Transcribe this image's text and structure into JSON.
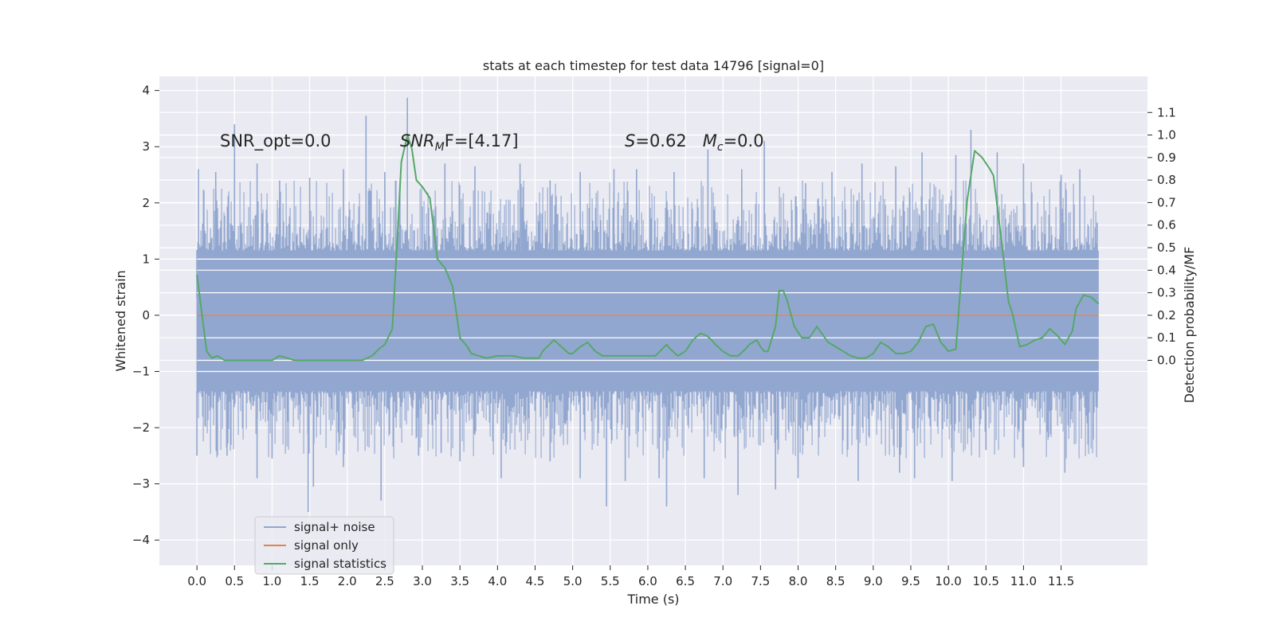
{
  "chart_data": {
    "type": "line",
    "title": "stats at each timestep for test data 14796 [signal=0]",
    "xlabel": "Time (s)",
    "ylabel": "Whitened strain",
    "ylabel_right": "Detection probability/MF",
    "xlim": [
      -0.5,
      12.65
    ],
    "ylim": [
      -4.45,
      4.25
    ],
    "ylim_right": [
      -0.91,
      1.26
    ],
    "x_ticks": [
      "0.0",
      "0.5",
      "1.0",
      "1.5",
      "2.0",
      "2.5",
      "3.0",
      "3.5",
      "4.0",
      "4.5",
      "5.0",
      "5.5",
      "6.0",
      "6.5",
      "7.0",
      "7.5",
      "8.0",
      "8.5",
      "9.0",
      "9.5",
      "10.0",
      "10.5",
      "11.0",
      "11.5"
    ],
    "y_ticks_left": [
      "4",
      "3",
      "2",
      "1",
      "0",
      "−1",
      "−2",
      "−3",
      "−4"
    ],
    "y_ticks_right": [
      "1.1",
      "1.0",
      "0.9",
      "0.8",
      "0.7",
      "0.6",
      "0.5",
      "0.4",
      "0.3",
      "0.2",
      "0.1",
      "0.0"
    ],
    "grid": true,
    "legend_position": "lower-left",
    "annotations": [
      {
        "id": "snr_opt",
        "text": "SNR_opt=0.0"
      },
      {
        "id": "snr_mf",
        "text": "SNR",
        "sub": "M",
        "rest": "F=[4.17]"
      },
      {
        "id": "s_mc",
        "text": "S",
        "rest": "=0.62   ",
        "text2": "M",
        "sub2": "c",
        "rest2": "=0.0"
      }
    ],
    "series": [
      {
        "name": "signal+ noise",
        "axis": "left",
        "color": "#92a7cf",
        "t_start": 0.0,
        "t_end": 12.0,
        "band": [
          -1.35,
          1.15
        ],
        "peaks_pos": [
          [
            0.0,
            0.3
          ],
          [
            0.02,
            2.6
          ],
          [
            0.25,
            2.55
          ],
          [
            0.5,
            3.4
          ],
          [
            0.8,
            2.7
          ],
          [
            1.1,
            2.4
          ],
          [
            1.5,
            2.45
          ],
          [
            1.95,
            2.6
          ],
          [
            2.25,
            3.55
          ],
          [
            2.5,
            2.55
          ],
          [
            2.8,
            3.87
          ],
          [
            3.3,
            2.7
          ],
          [
            3.7,
            2.65
          ],
          [
            4.3,
            2.7
          ],
          [
            4.7,
            2.4
          ],
          [
            5.1,
            2.55
          ],
          [
            5.55,
            2.6
          ],
          [
            5.85,
            2.6
          ],
          [
            6.35,
            2.55
          ],
          [
            6.8,
            2.95
          ],
          [
            7.25,
            2.6
          ],
          [
            7.55,
            3.1
          ],
          [
            8.1,
            2.35
          ],
          [
            8.45,
            2.55
          ],
          [
            8.85,
            2.7
          ],
          [
            9.3,
            2.65
          ],
          [
            9.65,
            2.9
          ],
          [
            10.1,
            2.85
          ],
          [
            10.3,
            3.3
          ],
          [
            10.65,
            2.9
          ],
          [
            11.0,
            2.7
          ],
          [
            11.5,
            2.5
          ],
          [
            11.75,
            2.6
          ],
          [
            11.98,
            1.65
          ]
        ],
        "peaks_neg": [
          [
            0.0,
            -2.5
          ],
          [
            0.4,
            -2.5
          ],
          [
            0.8,
            -2.9
          ],
          [
            1.0,
            -2.55
          ],
          [
            1.48,
            -3.5
          ],
          [
            1.55,
            -3.05
          ],
          [
            1.95,
            -2.7
          ],
          [
            2.45,
            -3.3
          ],
          [
            2.95,
            -2.5
          ],
          [
            3.25,
            -2.45
          ],
          [
            3.5,
            -2.6
          ],
          [
            4.05,
            -2.9
          ],
          [
            4.7,
            -2.6
          ],
          [
            5.1,
            -2.9
          ],
          [
            5.45,
            -3.4
          ],
          [
            5.7,
            -2.95
          ],
          [
            6.15,
            -2.9
          ],
          [
            6.25,
            -3.4
          ],
          [
            6.75,
            -2.9
          ],
          [
            7.2,
            -3.2
          ],
          [
            7.7,
            -3.1
          ],
          [
            8.0,
            -2.9
          ],
          [
            8.8,
            -2.95
          ],
          [
            9.35,
            -2.8
          ],
          [
            9.55,
            -2.9
          ],
          [
            10.05,
            -2.95
          ],
          [
            10.5,
            -2.4
          ],
          [
            11.0,
            -2.7
          ],
          [
            11.55,
            -2.8
          ],
          [
            11.98,
            -1.65
          ]
        ]
      },
      {
        "name": "signal only",
        "axis": "left",
        "color": "#dd8452",
        "x": [
          0.0,
          12.0
        ],
        "y": [
          0.0,
          0.0
        ]
      },
      {
        "name": "signal statistics",
        "axis": "right",
        "color": "#55a868",
        "x": [
          0.0,
          0.13,
          0.2,
          0.27,
          0.37,
          0.47,
          0.6,
          0.8,
          1.0,
          1.1,
          1.3,
          1.5,
          1.7,
          1.85,
          2.0,
          2.2,
          2.33,
          2.42,
          2.5,
          2.6,
          2.66,
          2.72,
          2.8,
          2.86,
          2.92,
          3.0,
          3.1,
          3.2,
          3.3,
          3.4,
          3.5,
          3.6,
          3.65,
          3.75,
          3.85,
          4.0,
          4.1,
          4.2,
          4.35,
          4.55,
          4.6,
          4.75,
          4.85,
          4.95,
          5.0,
          5.1,
          5.2,
          5.3,
          5.4,
          5.5,
          5.6,
          5.7,
          5.8,
          5.9,
          6.0,
          6.1,
          6.25,
          6.3,
          6.4,
          6.5,
          6.6,
          6.7,
          6.78,
          6.85,
          6.9,
          7.0,
          7.1,
          7.2,
          7.3,
          7.35,
          7.45,
          7.5,
          7.55,
          7.6,
          7.7,
          7.75,
          7.8,
          7.85,
          7.95,
          8.05,
          8.15,
          8.25,
          8.4,
          8.5,
          8.55,
          8.6,
          8.7,
          8.8,
          8.9,
          9.0,
          9.1,
          9.2,
          9.3,
          9.4,
          9.5,
          9.6,
          9.7,
          9.8,
          9.9,
          10.0,
          10.1,
          10.25,
          10.35,
          10.45,
          10.55,
          10.6,
          10.7,
          10.8,
          10.85,
          10.95,
          11.05,
          11.15,
          11.25,
          11.35,
          11.45,
          11.55,
          11.65,
          11.7,
          11.8,
          11.9,
          12.0
        ],
        "y": [
          0.38,
          0.04,
          0.01,
          0.02,
          0.0,
          0.0,
          0.0,
          0.0,
          0.0,
          0.02,
          0.0,
          0.0,
          0.0,
          0.0,
          0.0,
          0.0,
          0.02,
          0.05,
          0.07,
          0.14,
          0.5,
          0.88,
          1.0,
          0.94,
          0.8,
          0.77,
          0.72,
          0.45,
          0.41,
          0.33,
          0.1,
          0.06,
          0.03,
          0.02,
          0.01,
          0.02,
          0.02,
          0.02,
          0.01,
          0.01,
          0.04,
          0.09,
          0.06,
          0.03,
          0.03,
          0.06,
          0.08,
          0.04,
          0.02,
          0.02,
          0.02,
          0.02,
          0.02,
          0.02,
          0.02,
          0.02,
          0.07,
          0.05,
          0.02,
          0.04,
          0.09,
          0.12,
          0.11,
          0.09,
          0.07,
          0.04,
          0.02,
          0.02,
          0.05,
          0.07,
          0.09,
          0.06,
          0.04,
          0.04,
          0.15,
          0.31,
          0.31,
          0.27,
          0.15,
          0.1,
          0.1,
          0.15,
          0.08,
          0.06,
          0.05,
          0.04,
          0.02,
          0.01,
          0.01,
          0.03,
          0.08,
          0.06,
          0.03,
          0.03,
          0.04,
          0.08,
          0.15,
          0.16,
          0.08,
          0.04,
          0.05,
          0.71,
          0.93,
          0.9,
          0.85,
          0.82,
          0.55,
          0.26,
          0.21,
          0.06,
          0.07,
          0.09,
          0.1,
          0.14,
          0.11,
          0.07,
          0.13,
          0.23,
          0.29,
          0.28,
          0.25
        ]
      }
    ]
  }
}
